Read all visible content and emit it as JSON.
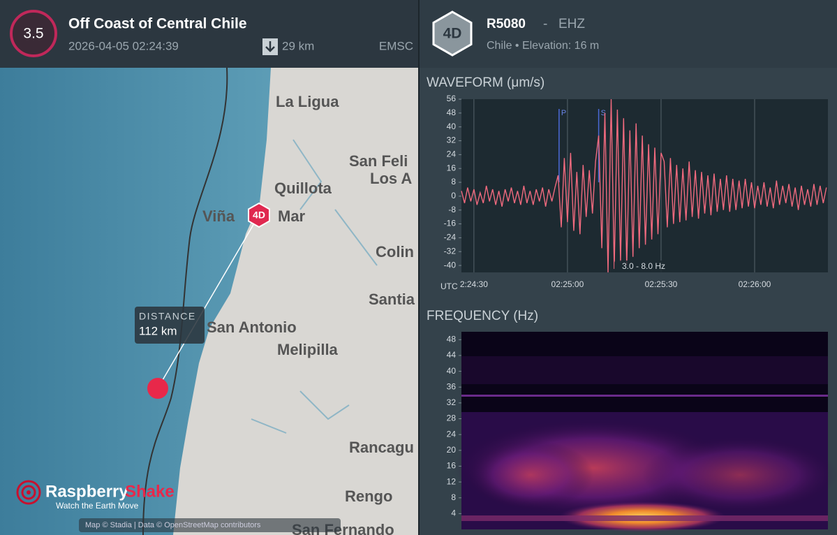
{
  "event": {
    "magnitude": "3.5",
    "title": "Off Coast of Central Chile",
    "time": "2026-04-05 02:24:39",
    "depth": "29 km",
    "source": "EMSC"
  },
  "map": {
    "labels": [
      "La Ligua",
      "San Feli",
      "Los A",
      "Quillota",
      "Viña",
      "Mar",
      "Colin",
      "Santia",
      "San Antonio",
      "Melipilla",
      "Rancagu",
      "Rengo",
      "San Fernando"
    ],
    "distance_label": "DISTANCE",
    "distance": "112 km",
    "station_marker": "4D",
    "logo_a": "Raspberry",
    "logo_b": "Shake",
    "tagline": "Watch the Earth Move",
    "attribution": "Map © Stadia | Data © OpenStreetMap contributors"
  },
  "station": {
    "badge": "4D",
    "code": "R5080",
    "separator": "-",
    "channel": "EHZ",
    "details": "Chile • Elevation: 16 m"
  },
  "chart_data": [
    {
      "type": "line",
      "title": "WAVEFORM (μm/s)",
      "x_unit": "UTC",
      "filter": "3.0 - 8.0 Hz",
      "color": "#f06a7e",
      "grid": "x",
      "x": [
        26,
        27,
        28,
        29,
        30,
        31,
        32,
        33,
        34,
        35,
        36,
        37,
        38,
        39,
        40,
        41,
        42,
        43,
        44,
        45,
        46,
        47,
        48,
        49,
        50,
        51,
        52,
        53,
        54,
        55,
        56,
        57,
        58,
        59,
        60,
        61,
        62,
        63,
        64,
        65,
        66,
        67,
        68,
        69,
        70,
        71,
        72,
        73,
        74,
        75,
        76,
        77,
        78,
        79,
        80,
        81,
        82,
        83,
        84,
        85,
        86,
        87,
        88,
        89,
        90,
        91,
        92,
        93,
        94,
        95,
        96,
        97,
        98,
        99,
        100,
        101,
        102,
        103,
        104,
        105,
        106,
        107,
        108,
        109,
        110,
        111,
        112,
        113,
        114,
        115,
        116,
        117,
        118,
        119,
        120,
        121,
        122,
        123,
        124,
        125,
        126,
        127,
        128,
        129,
        130,
        131,
        132,
        133,
        134,
        135,
        136,
        137,
        138,
        139,
        140,
        141,
        142,
        143
      ],
      "values": [
        3,
        -4,
        5,
        -3,
        4,
        -5,
        2,
        -4,
        6,
        -3,
        4,
        -5,
        3,
        -6,
        4,
        -3,
        5,
        -4,
        3,
        -5,
        6,
        -4,
        3,
        -5,
        4,
        -3,
        5,
        -6,
        4,
        -3,
        5,
        12,
        -18,
        22,
        -15,
        25,
        -20,
        14,
        -22,
        18,
        -12,
        15,
        -10,
        20,
        35,
        -30,
        48,
        -44,
        56,
        -42,
        50,
        -38,
        45,
        -40,
        38,
        -35,
        42,
        -30,
        35,
        -28,
        30,
        -25,
        28,
        -22,
        25,
        20,
        -18,
        22,
        -16,
        18,
        -15,
        16,
        -14,
        20,
        -12,
        15,
        -13,
        14,
        -10,
        12,
        -11,
        13,
        -9,
        10,
        -8,
        12,
        -9,
        10,
        -8,
        9,
        -7,
        10,
        -6,
        8,
        -7,
        6,
        -5,
        8,
        -6,
        5,
        -7,
        9,
        -5,
        6,
        -4,
        7,
        -6,
        5,
        -8,
        6,
        -5,
        4,
        -6,
        7,
        -5,
        6,
        -4,
        5
      ],
      "picks": [
        {
          "label": "P",
          "x": 57.3
        },
        {
          "label": "S",
          "x": 70
        }
      ],
      "xlim": [
        26,
        143.5
      ],
      "xticks": [
        {
          "value": 30,
          "label": "2:24:30"
        },
        {
          "value": 60,
          "label": "02:25:00"
        },
        {
          "value": 90,
          "label": "02:25:30"
        },
        {
          "value": 120,
          "label": "02:26:00"
        }
      ],
      "ylim": [
        -44,
        56
      ],
      "yticks": [
        -40,
        -32,
        -24,
        -16,
        -8,
        0,
        8,
        16,
        24,
        32,
        40,
        48,
        56
      ]
    },
    {
      "type": "heatmap",
      "title": "FREQUENCY (Hz)",
      "ylim": [
        0,
        50
      ],
      "yticks": [
        4,
        8,
        12,
        16,
        20,
        24,
        28,
        32,
        36,
        40,
        44,
        48
      ]
    }
  ]
}
